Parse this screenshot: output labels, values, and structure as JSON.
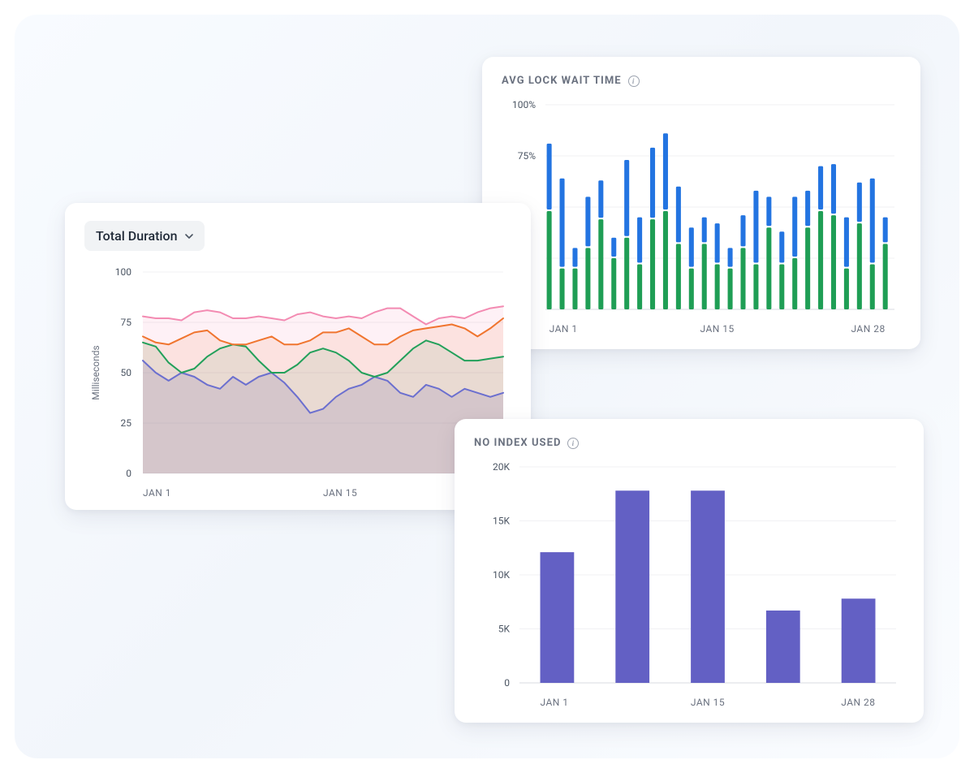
{
  "background": {
    "color_start": "#f8fbff",
    "color_end": "#fafcff",
    "corner_radius": 28
  },
  "card_shadow": "0 8px 28px rgba(20,30,60,0.08)",
  "card_bg": "#ffffff",
  "duration_chart": {
    "type": "area-line",
    "dropdown_label": "Total Duration",
    "ylabel": "Milliseconds",
    "ylim": [
      0,
      100
    ],
    "ytick_step": 25,
    "yticks": [
      "0",
      "25",
      "50",
      "75",
      "100"
    ],
    "xticks": [
      "JAN 1",
      "JAN 15"
    ],
    "grid_color": "#f0f1f3",
    "label_color": "#6b7280",
    "series": [
      {
        "name": "pink",
        "color": "#f38bb2",
        "fill": "rgba(243,139,178,0.12)",
        "values": [
          78,
          77,
          77,
          76,
          80,
          81,
          80,
          77,
          77,
          78,
          77,
          76,
          79,
          80,
          78,
          77,
          78,
          77,
          80,
          82,
          82,
          78,
          74,
          77,
          78,
          77,
          80,
          82,
          83
        ]
      },
      {
        "name": "orange",
        "color": "#f0752f",
        "fill": "rgba(240,117,47,0.12)",
        "values": [
          68,
          65,
          64,
          67,
          70,
          71,
          66,
          64,
          64,
          66,
          68,
          64,
          64,
          66,
          70,
          70,
          72,
          68,
          64,
          64,
          68,
          71,
          72,
          73,
          74,
          72,
          68,
          72,
          77
        ]
      },
      {
        "name": "green",
        "color": "#22a05a",
        "fill": "rgba(34,160,90,0.10)",
        "values": [
          65,
          63,
          55,
          50,
          52,
          58,
          62,
          64,
          63,
          56,
          50,
          50,
          54,
          60,
          62,
          60,
          56,
          50,
          48,
          50,
          56,
          62,
          66,
          64,
          60,
          56,
          56,
          57,
          58
        ]
      },
      {
        "name": "purple",
        "color": "#6b6fcf",
        "fill": "rgba(107,111,207,0.20)",
        "values": [
          56,
          50,
          46,
          50,
          48,
          44,
          42,
          48,
          44,
          48,
          50,
          45,
          38,
          30,
          32,
          38,
          42,
          44,
          48,
          46,
          40,
          38,
          44,
          42,
          38,
          42,
          40,
          38,
          40
        ]
      }
    ]
  },
  "lock_chart": {
    "type": "stacked-bar",
    "title": "AVG LOCK WAIT TIME",
    "ymax": 100,
    "yticks": [
      "75%",
      "100%"
    ],
    "xticks": [
      "JAN 1",
      "JAN 15",
      "JAN 28"
    ],
    "grid_color": "#f0f1f3",
    "label_color": "#6b7280",
    "bar_colors": {
      "bottom": "#1f9e55",
      "top": "#2374e1"
    },
    "bar_width": 0.38,
    "bars": [
      {
        "g": 48,
        "b": 81
      },
      {
        "g": 20,
        "b": 64
      },
      {
        "g": 20,
        "b": 30
      },
      {
        "g": 30,
        "b": 55
      },
      {
        "g": 44,
        "b": 63
      },
      {
        "g": 25,
        "b": 35
      },
      {
        "g": 35,
        "b": 73
      },
      {
        "g": 22,
        "b": 45
      },
      {
        "g": 44,
        "b": 79
      },
      {
        "g": 48,
        "b": 86
      },
      {
        "g": 32,
        "b": 60
      },
      {
        "g": 20,
        "b": 40
      },
      {
        "g": 32,
        "b": 45
      },
      {
        "g": 22,
        "b": 42
      },
      {
        "g": 20,
        "b": 30
      },
      {
        "g": 30,
        "b": 46
      },
      {
        "g": 22,
        "b": 58
      },
      {
        "g": 40,
        "b": 55
      },
      {
        "g": 22,
        "b": 38
      },
      {
        "g": 25,
        "b": 55
      },
      {
        "g": 40,
        "b": 58
      },
      {
        "g": 48,
        "b": 70
      },
      {
        "g": 46,
        "b": 71
      },
      {
        "g": 20,
        "b": 45
      },
      {
        "g": 42,
        "b": 62
      },
      {
        "g": 22,
        "b": 64
      },
      {
        "g": 32,
        "b": 45
      }
    ]
  },
  "index_chart": {
    "type": "bar",
    "title": "NO INDEX USED",
    "ymax": 20000,
    "ytick_step": 5000,
    "yticks": [
      "0",
      "5K",
      "10K",
      "15K",
      "20K"
    ],
    "xticks": [
      "JAN 1",
      "JAN 15",
      "JAN 28"
    ],
    "bar_color": "#6360c4",
    "grid_color": "#f0f1f3",
    "label_color": "#6b7280",
    "bar_width": 0.45,
    "values": [
      12100,
      17800,
      17800,
      6700,
      7800
    ]
  }
}
